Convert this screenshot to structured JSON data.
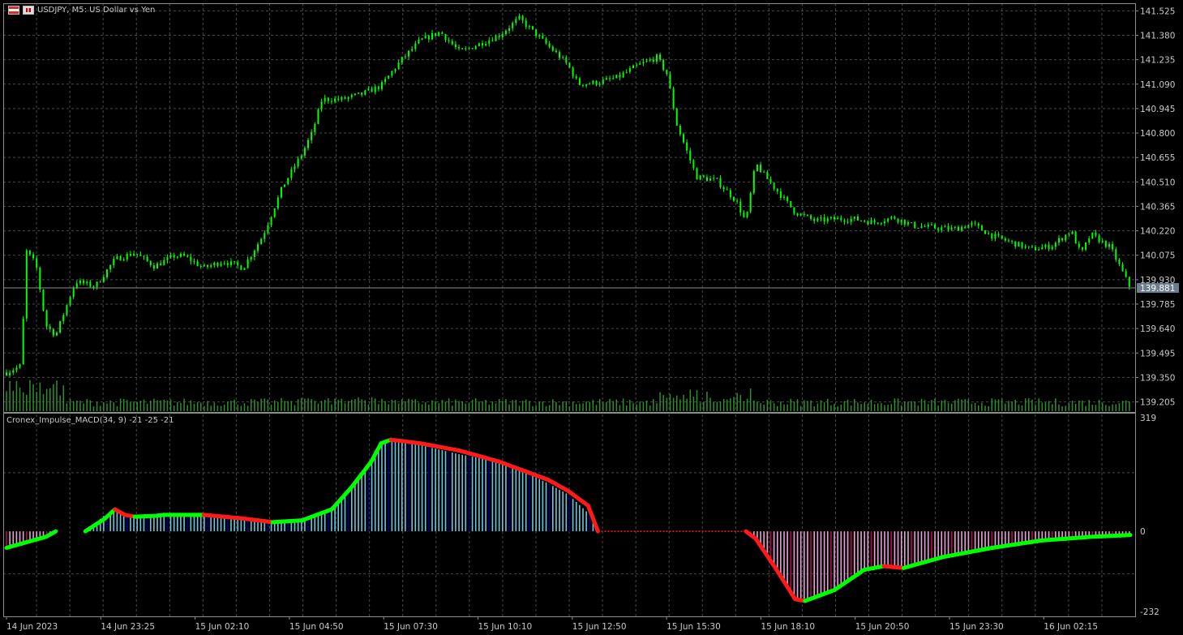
{
  "window": {
    "symbol": "USDJPY",
    "timeframe": "M5",
    "title_line": "USDJPY, M5:  US Dollar vs Yen",
    "icons": [
      "flag-icon",
      "chart-bars-icon"
    ]
  },
  "price_axis": {
    "labels": [
      "141.525",
      "141.380",
      "141.235",
      "141.090",
      "140.945",
      "140.800",
      "140.655",
      "140.510",
      "140.365",
      "140.220",
      "140.075",
      "139.930",
      "139.785",
      "139.640",
      "139.495",
      "139.350",
      "139.205"
    ],
    "current_price": "139.881"
  },
  "indicator": {
    "title": "Cronex_Impulse_MACD(34, 9) -21 -25 -21",
    "axis_labels": [
      "319",
      "0",
      "-232"
    ]
  },
  "time_axis": {
    "labels": [
      "14 Jun 2023",
      "14 Jun 23:25",
      "15 Jun 02:10",
      "15 Jun 04:50",
      "15 Jun 07:30",
      "15 Jun 10:10",
      "15 Jun 12:50",
      "15 Jun 15:30",
      "15 Jun 18:10",
      "15 Jun 20:50",
      "15 Jun 23:30",
      "16 Jun 02:15"
    ]
  },
  "colors": {
    "background": "#000000",
    "grid": "#4a4a4a",
    "candles": "#00ff00",
    "volume": "#2f8f2f",
    "macd_hist_pos": "#6ec6dc",
    "macd_hist_pos_dark": "#00008b",
    "macd_hist_neg": "#e8a0d8",
    "macd_hist_neg_dark": "#b01050",
    "signal_up": "#00ff00",
    "signal_down": "#ff1a1a",
    "axis_text": "#c8c8c8"
  },
  "chart_data": [
    {
      "type": "candlestick",
      "title": "USDJPY, M5:  US Dollar vs Yen",
      "ylim": [
        139.15,
        141.57
      ],
      "current_price": 139.881,
      "x": [
        "14 Jun 2023",
        "14 Jun 23:25",
        "15 Jun 02:10",
        "15 Jun 04:50",
        "15 Jun 07:30",
        "15 Jun 10:10",
        "15 Jun 12:50",
        "15 Jun 15:30",
        "15 Jun 18:10",
        "15 Jun 20:50",
        "15 Jun 23:30",
        "16 Jun 02:15"
      ],
      "price_path": [
        [
          0,
          139.38
        ],
        [
          1.5,
          139.42
        ],
        [
          2,
          140.1
        ],
        [
          3,
          140.02
        ],
        [
          4,
          139.66
        ],
        [
          5,
          139.6
        ],
        [
          7,
          139.92
        ],
        [
          9,
          139.89
        ],
        [
          11,
          140.05
        ],
        [
          13,
          140.09
        ],
        [
          15,
          140.01
        ],
        [
          17,
          140.07
        ],
        [
          18,
          140.07
        ],
        [
          20,
          140.0
        ],
        [
          22,
          140.04
        ],
        [
          24,
          140.0
        ],
        [
          26,
          140.19
        ],
        [
          28,
          140.48
        ],
        [
          30,
          140.68
        ],
        [
          31,
          140.8
        ],
        [
          32,
          141.0
        ],
        [
          34,
          141.0
        ],
        [
          36,
          141.03
        ],
        [
          38,
          141.08
        ],
        [
          40,
          141.23
        ],
        [
          42,
          141.35
        ],
        [
          44,
          141.4
        ],
        [
          46,
          141.28
        ],
        [
          48,
          141.33
        ],
        [
          50,
          141.38
        ],
        [
          52,
          141.48
        ],
        [
          54,
          141.37
        ],
        [
          56,
          141.26
        ],
        [
          57,
          141.2
        ],
        [
          58,
          141.09
        ],
        [
          60,
          141.1
        ],
        [
          62,
          141.13
        ],
        [
          64,
          141.2
        ],
        [
          66,
          141.25
        ],
        [
          67,
          141.15
        ],
        [
          68,
          140.85
        ],
        [
          70,
          140.54
        ],
        [
          72,
          140.52
        ],
        [
          74,
          140.4
        ],
        [
          75,
          140.27
        ],
        [
          76,
          140.62
        ],
        [
          77,
          140.54
        ],
        [
          78,
          140.47
        ],
        [
          80,
          140.33
        ],
        [
          82,
          140.28
        ],
        [
          84,
          140.29
        ],
        [
          86,
          140.29
        ],
        [
          88,
          140.27
        ],
        [
          90,
          140.3
        ],
        [
          92,
          140.25
        ],
        [
          94,
          140.24
        ],
        [
          96,
          140.23
        ],
        [
          98,
          140.26
        ],
        [
          100,
          140.19
        ],
        [
          102,
          140.15
        ],
        [
          104,
          140.11
        ],
        [
          106,
          140.13
        ],
        [
          108,
          140.22
        ],
        [
          109,
          140.08
        ],
        [
          110,
          140.2
        ],
        [
          112,
          140.12
        ],
        [
          114,
          139.88
        ]
      ]
    },
    {
      "type": "bar",
      "title": "Cronex_Impulse_MACD(34, 9) -21 -25 -21",
      "ylim": [
        -232,
        319
      ],
      "histogram_path": [
        [
          0,
          -45
        ],
        [
          4,
          -15
        ],
        [
          5,
          0
        ],
        [
          8,
          0
        ],
        [
          10,
          45
        ],
        [
          11,
          60
        ],
        [
          12,
          45
        ],
        [
          13,
          35
        ],
        [
          15,
          40
        ],
        [
          16,
          45
        ],
        [
          20,
          45
        ],
        [
          24,
          35
        ],
        [
          27,
          25
        ],
        [
          30,
          30
        ],
        [
          33,
          60
        ],
        [
          35,
          120
        ],
        [
          37,
          190
        ],
        [
          38,
          240
        ],
        [
          39,
          250
        ],
        [
          42,
          235
        ],
        [
          46,
          210
        ],
        [
          50,
          190
        ],
        [
          52,
          170
        ],
        [
          55,
          130
        ],
        [
          57,
          100
        ],
        [
          59,
          50
        ],
        [
          60,
          0
        ],
        [
          75,
          0
        ],
        [
          76,
          -20
        ],
        [
          78,
          -100
        ],
        [
          80,
          -185
        ],
        [
          81,
          -190
        ],
        [
          84,
          -160
        ],
        [
          87,
          -105
        ],
        [
          89,
          -95
        ],
        [
          91,
          -100
        ],
        [
          95,
          -70
        ],
        [
          100,
          -45
        ],
        [
          105,
          -25
        ],
        [
          110,
          -15
        ],
        [
          114,
          -10
        ]
      ],
      "signal_path": [
        [
          0,
          -45
        ],
        [
          4,
          -15
        ],
        [
          5,
          0
        ],
        [
          8,
          0
        ],
        [
          10,
          35
        ],
        [
          11,
          60
        ],
        [
          12,
          45
        ],
        [
          13,
          40
        ],
        [
          15,
          42
        ],
        [
          16,
          45
        ],
        [
          20,
          45
        ],
        [
          24,
          35
        ],
        [
          27,
          25
        ],
        [
          30,
          30
        ],
        [
          33,
          60
        ],
        [
          35,
          120
        ],
        [
          37,
          190
        ],
        [
          38,
          240
        ],
        [
          39,
          250
        ],
        [
          42,
          240
        ],
        [
          46,
          220
        ],
        [
          50,
          190
        ],
        [
          52,
          170
        ],
        [
          55,
          140
        ],
        [
          57,
          110
        ],
        [
          59,
          70
        ],
        [
          60,
          0
        ],
        [
          75,
          0
        ],
        [
          76,
          -20
        ],
        [
          78,
          -100
        ],
        [
          80,
          -185
        ],
        [
          81,
          -190
        ],
        [
          84,
          -160
        ],
        [
          87,
          -105
        ],
        [
          89,
          -95
        ],
        [
          91,
          -100
        ],
        [
          95,
          -70
        ],
        [
          100,
          -45
        ],
        [
          105,
          -25
        ],
        [
          110,
          -15
        ],
        [
          114,
          -10
        ]
      ],
      "last_values": [
        -21,
        -25,
        -21
      ]
    }
  ]
}
